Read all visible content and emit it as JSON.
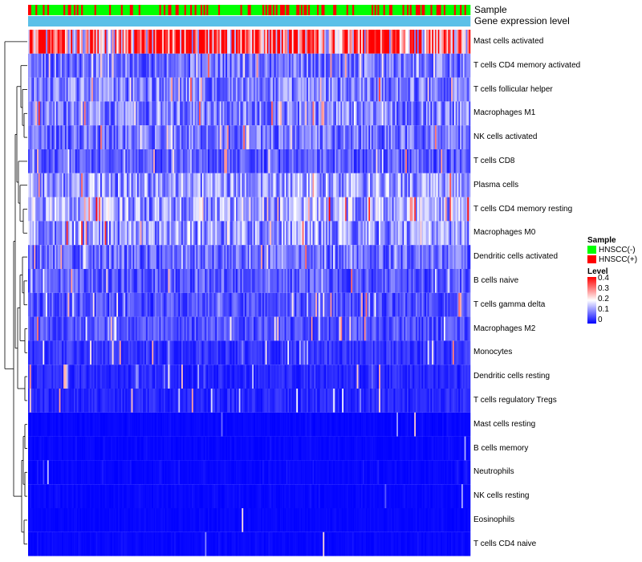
{
  "annotations": {
    "sample_label": "Sample",
    "expression_label": "Gene expression level"
  },
  "legend": {
    "sample_title": "Sample",
    "sample_items": [
      {
        "label": "HNSCC(-)",
        "color": "#00ff00"
      },
      {
        "label": "HNSCC(+)",
        "color": "#ff0000"
      }
    ],
    "level_title": "Level",
    "level_ticks": [
      "0.4",
      "0.3",
      "0.2",
      "0.1",
      "0"
    ]
  },
  "colors": {
    "low": "#0000ff",
    "mid": "#ffffff",
    "high": "#ff0000",
    "expression_bar": "#5bc0e8",
    "neg": "#00ff00",
    "pos": "#ff0000"
  },
  "chart_data": {
    "type": "heatmap",
    "title": "",
    "value_range": [
      0,
      0.4
    ],
    "n_samples": 300,
    "rows": [
      {
        "name": "Mast cells activated",
        "mean": 0.3
      },
      {
        "name": "T cells CD4 memory activated",
        "mean": 0.09
      },
      {
        "name": "T cells follicular helper",
        "mean": 0.1
      },
      {
        "name": "Macrophages M1",
        "mean": 0.1
      },
      {
        "name": "NK cells activated",
        "mean": 0.09
      },
      {
        "name": "T cells CD8",
        "mean": 0.07
      },
      {
        "name": "Plasma cells",
        "mean": 0.12
      },
      {
        "name": "T cells CD4 memory resting",
        "mean": 0.13
      },
      {
        "name": "Macrophages M0",
        "mean": 0.12
      },
      {
        "name": "Dendritic cells activated",
        "mean": 0.08
      },
      {
        "name": "B cells naive",
        "mean": 0.07
      },
      {
        "name": "T cells gamma delta",
        "mean": 0.06
      },
      {
        "name": "Macrophages M2",
        "mean": 0.06
      },
      {
        "name": "Monocytes",
        "mean": 0.04
      },
      {
        "name": "Dendritic cells resting",
        "mean": 0.03
      },
      {
        "name": "T cells regulatory  Tregs",
        "mean": 0.03
      },
      {
        "name": "Mast cells resting",
        "mean": 0.01
      },
      {
        "name": "B cells memory",
        "mean": 0.01
      },
      {
        "name": "Neutrophils",
        "mean": 0.015
      },
      {
        "name": "NK cells resting",
        "mean": 0.01
      },
      {
        "name": "Eosinophils",
        "mean": 0.005
      },
      {
        "name": "T cells CD4 naive",
        "mean": 0.01
      }
    ]
  }
}
